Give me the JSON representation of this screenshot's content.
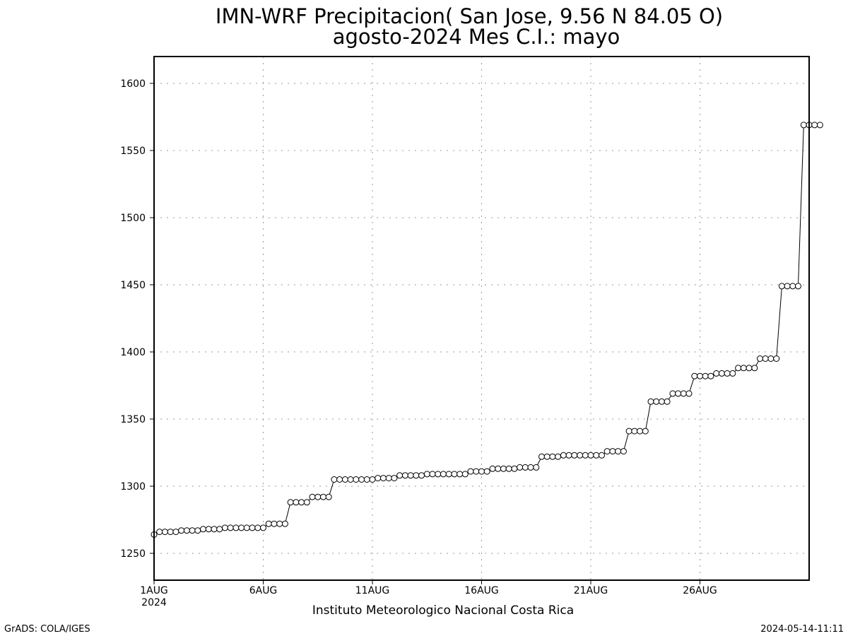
{
  "footer": {
    "left": "GrADS: COLA/IGES",
    "right": "2024-05-14-11:11"
  },
  "chart_data": {
    "type": "line",
    "title_line1": "IMN-WRF  Precipitacion( San Jose, 9.56  N 84.05  O)",
    "title_line2": "agosto-2024 Mes C.I.: mayo",
    "xlabel": "Instituto Meteorologico Nacional Costa Rica",
    "ylabel": "",
    "x_range": [
      "2024-08-01 00:00",
      "2024-08-31 00:00"
    ],
    "x_step_hours": 6,
    "ylim": [
      1230,
      1620
    ],
    "yticks": [
      1250,
      1300,
      1350,
      1400,
      1450,
      1500,
      1550,
      1600
    ],
    "xticks": [
      {
        "day": 1,
        "label": "1AUG",
        "sublabel": "2024"
      },
      {
        "day": 6,
        "label": "6AUG",
        "sublabel": ""
      },
      {
        "day": 11,
        "label": "11AUG",
        "sublabel": ""
      },
      {
        "day": 16,
        "label": "16AUG",
        "sublabel": ""
      },
      {
        "day": 21,
        "label": "21AUG",
        "sublabel": ""
      },
      {
        "day": 26,
        "label": "26AUG",
        "sublabel": ""
      }
    ],
    "grid": true,
    "marker": "open-circle",
    "line_color": "#000000",
    "series": [
      {
        "values": [
          1264,
          1266,
          1266,
          1266,
          1266,
          1267,
          1267,
          1267,
          1267,
          1268,
          1268,
          1268,
          1268,
          1269,
          1269,
          1269,
          1269,
          1269,
          1269,
          1269,
          1269,
          1272,
          1272,
          1272,
          1272,
          1288,
          1288,
          1288,
          1288,
          1292,
          1292,
          1292,
          1292,
          1305,
          1305,
          1305,
          1305,
          1305,
          1305,
          1305,
          1305,
          1306,
          1306,
          1306,
          1306,
          1308,
          1308,
          1308,
          1308,
          1308,
          1309,
          1309,
          1309,
          1309,
          1309,
          1309,
          1309,
          1309,
          1311,
          1311,
          1311,
          1311,
          1313,
          1313,
          1313,
          1313,
          1313,
          1314,
          1314,
          1314,
          1314,
          1322,
          1322,
          1322,
          1322,
          1323,
          1323,
          1323,
          1323,
          1323,
          1323,
          1323,
          1323,
          1326,
          1326,
          1326,
          1326,
          1341,
          1341,
          1341,
          1341,
          1363,
          1363,
          1363,
          1363,
          1369,
          1369,
          1369,
          1369,
          1382,
          1382,
          1382,
          1382,
          1384,
          1384,
          1384,
          1384,
          1388,
          1388,
          1388,
          1388,
          1395,
          1395,
          1395,
          1395,
          1449,
          1449,
          1449,
          1449,
          1569,
          1569,
          1569,
          1569
        ]
      }
    ]
  }
}
